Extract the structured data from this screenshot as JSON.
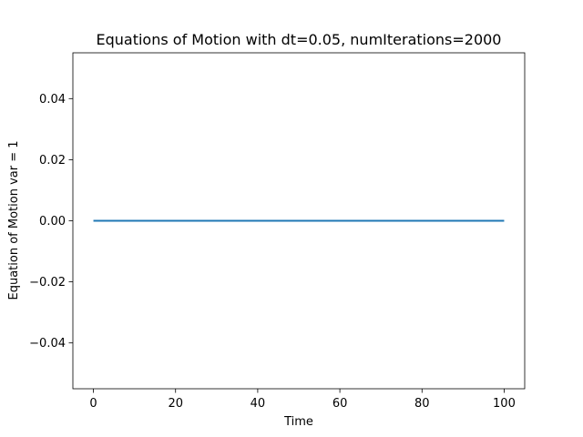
{
  "chart_data": {
    "type": "line",
    "title": "Equations of Motion with dt=0.05, numIterations=2000",
    "xlabel": "Time",
    "ylabel": "Equation of Motion var = 1",
    "xlim": [
      -5,
      105
    ],
    "ylim": [
      -0.055,
      0.055
    ],
    "xticks": [
      0,
      20,
      40,
      60,
      80,
      100
    ],
    "xtick_labels": [
      "0",
      "20",
      "40",
      "60",
      "80",
      "100"
    ],
    "yticks": [
      -0.04,
      -0.02,
      0.0,
      0.02,
      0.04
    ],
    "ytick_labels": [
      "−0.04",
      "−0.02",
      "0.00",
      "0.02",
      "0.04"
    ],
    "grid": false,
    "series": [
      {
        "color": "#1f77b4",
        "x": [
          0,
          100
        ],
        "y": [
          0,
          0
        ]
      }
    ]
  }
}
